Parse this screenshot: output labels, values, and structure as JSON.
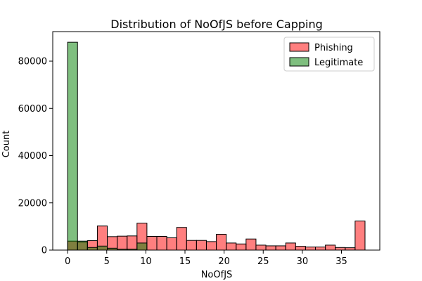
{
  "chart_data": {
    "type": "bar",
    "title": "Distribution of NoOfJS before Capping",
    "xlabel": "NoOfJS",
    "ylabel": "Count",
    "xlim": [
      -1.9,
      39.9
    ],
    "ylim": [
      0,
      92500
    ],
    "xticks": [
      0,
      5,
      10,
      15,
      20,
      25,
      30,
      35
    ],
    "yticks": [
      0,
      20000,
      40000,
      60000,
      80000
    ],
    "bin_width": 1.267,
    "bin_start": 0,
    "legend_position": "top-right",
    "series": [
      {
        "name": "Phishing",
        "color": "#ff0000",
        "alpha": 0.5,
        "values": [
          3800,
          3400,
          4000,
          10200,
          5700,
          5900,
          6000,
          11400,
          5800,
          5800,
          5200,
          9600,
          4100,
          4100,
          3600,
          6700,
          3000,
          2600,
          4700,
          2100,
          1800,
          1800,
          3000,
          1600,
          1300,
          1300,
          2100,
          1100,
          1000,
          12300
        ]
      },
      {
        "name": "Legitimate",
        "color": "#008000",
        "alpha": 0.5,
        "values": [
          88000,
          3800,
          1100,
          1700,
          800,
          400,
          400,
          3000,
          0,
          0,
          0,
          0,
          0,
          0,
          0,
          0,
          0,
          0,
          0,
          0,
          0,
          0,
          0,
          0,
          0,
          0,
          0,
          0,
          0,
          0
        ]
      }
    ]
  }
}
